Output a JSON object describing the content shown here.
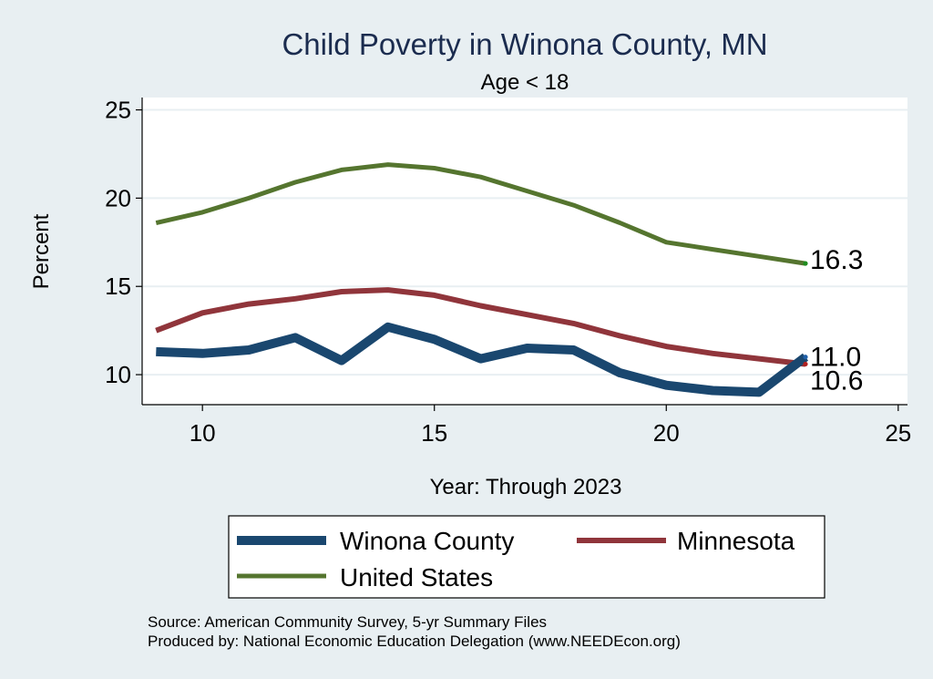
{
  "chart_data": {
    "type": "line",
    "title": "Child Poverty in Winona County, MN",
    "subtitle": "Age < 18",
    "xlabel": "Year: Through 2023",
    "ylabel": "Percent",
    "xlim": [
      8.7,
      25.2
    ],
    "ylim": [
      8.3,
      25.7
    ],
    "xticks": [
      10,
      15,
      20,
      25
    ],
    "yticks": [
      10,
      15,
      20,
      25
    ],
    "grid": true,
    "x": [
      9,
      10,
      11,
      12,
      13,
      14,
      15,
      16,
      17,
      18,
      19,
      20,
      21,
      22,
      23
    ],
    "series": [
      {
        "name": "Winona County",
        "color": "#1a476f",
        "values": [
          11.3,
          11.2,
          11.4,
          12.1,
          10.8,
          12.7,
          12.0,
          10.9,
          11.5,
          11.4,
          10.1,
          9.4,
          9.1,
          9.0,
          11.0
        ],
        "end_label": "11.0"
      },
      {
        "name": "Minnesota",
        "color": "#90353b",
        "values": [
          12.5,
          13.5,
          14.0,
          14.3,
          14.7,
          14.8,
          14.5,
          13.9,
          13.4,
          12.9,
          12.2,
          11.6,
          11.2,
          10.9,
          10.6
        ],
        "end_label": "10.6"
      },
      {
        "name": "United States",
        "color": "#55752f",
        "values": [
          18.6,
          19.2,
          20.0,
          20.9,
          21.6,
          21.9,
          21.7,
          21.2,
          20.4,
          19.6,
          18.6,
          17.5,
          17.1,
          16.7,
          16.3
        ],
        "end_label": "16.3"
      }
    ],
    "legend": {
      "placement": "bottom",
      "entries": [
        "Winona County",
        "Minnesota",
        "United States"
      ]
    },
    "notes": [
      "Source: American Community Survey, 5-yr Summary Files",
      "Produced by: National Economic Education Delegation (www.NEEDEcon.org)"
    ]
  }
}
